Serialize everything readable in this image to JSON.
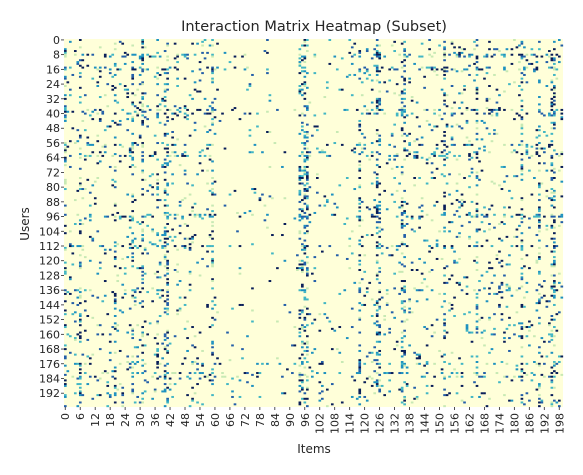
{
  "chart_data": {
    "type": "heatmap",
    "title": "Interaction Matrix Heatmap (Subset)",
    "xlabel": "Items",
    "ylabel": "Users",
    "n_rows": 200,
    "n_cols": 200,
    "x_tick_labels": [
      "0",
      "6",
      "12",
      "18",
      "24",
      "30",
      "36",
      "42",
      "48",
      "54",
      "60",
      "66",
      "72",
      "78",
      "84",
      "90",
      "96",
      "102",
      "108",
      "114",
      "120",
      "126",
      "132",
      "138",
      "144",
      "150",
      "156",
      "162",
      "168",
      "174",
      "180",
      "186",
      "192",
      "198"
    ],
    "y_tick_labels": [
      "0",
      "8",
      "16",
      "24",
      "32",
      "40",
      "48",
      "56",
      "64",
      "72",
      "80",
      "88",
      "96",
      "104",
      "112",
      "120",
      "128",
      "136",
      "144",
      "152",
      "160",
      "168",
      "176",
      "184",
      "192"
    ],
    "colormap": [
      "#ffffd9",
      "#c7e9b4",
      "#41b6c4",
      "#1d91c0",
      "#225ea8",
      "#081d58"
    ],
    "background_value_color": "#ffffd9",
    "colorbar": false,
    "grid": false,
    "density_note": "sparse matrix; most cells zero",
    "dense_columns": [
      0,
      6,
      20,
      27,
      31,
      37,
      40,
      41,
      59,
      94,
      95,
      96,
      97,
      118,
      125,
      126,
      135,
      136,
      152,
      165,
      183,
      190,
      195,
      196
    ],
    "dense_rows": [
      8,
      9,
      15,
      16,
      38,
      40,
      57,
      61,
      63,
      95,
      96,
      112,
      136,
      176,
      181,
      183
    ]
  }
}
